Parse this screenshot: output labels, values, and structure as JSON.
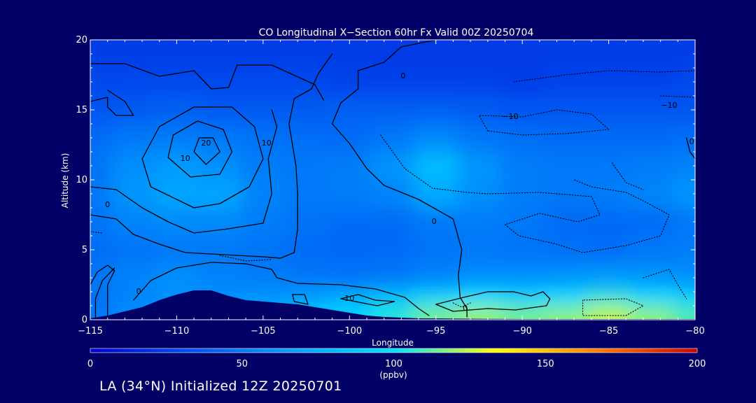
{
  "chart_data": {
    "type": "heatmap",
    "title": "CO Longitudinal X−Section 60hr  Fx Valid 00Z 20250704",
    "xlabel": "Longitude",
    "ylabel": "Altitude (km)",
    "xlim": [
      -115,
      -80
    ],
    "ylim": [
      0,
      20
    ],
    "x_ticks": [
      -115,
      -110,
      -105,
      -100,
      -95,
      -90,
      -85,
      -80
    ],
    "x_tick_labels": [
      "−115",
      "−110",
      "−105",
      "−100",
      "−95",
      "−90",
      "−85",
      "−80"
    ],
    "y_ticks": [
      0,
      5,
      10,
      15,
      20
    ],
    "y_tick_labels": [
      "0",
      "5",
      "10",
      "15",
      "20"
    ],
    "colorbar": {
      "min": 0,
      "max": 200,
      "ticks": [
        0,
        50,
        100,
        150,
        200
      ],
      "tick_labels": [
        "0",
        "50",
        "100",
        "150",
        "200"
      ],
      "unit": "(ppbv)",
      "colors": [
        "#0000cc",
        "#0050f0",
        "#00a0ff",
        "#00e0ff",
        "#ffff00",
        "#ff8000",
        "#cc0000"
      ]
    },
    "x": [
      -115,
      -112.5,
      -110,
      -107.5,
      -105,
      -102.5,
      -100,
      -97.5,
      -95,
      -92.5,
      -90,
      -87.5,
      -85,
      -82.5,
      -80
    ],
    "y": [
      0.5,
      1.5,
      3,
      5,
      7,
      9,
      11,
      13,
      15,
      17,
      19
    ],
    "z": [
      [
        50,
        60,
        62,
        65,
        72,
        85,
        95,
        105,
        115,
        120,
        115,
        118,
        125,
        118,
        110
      ],
      [
        45,
        55,
        60,
        60,
        62,
        65,
        75,
        85,
        95,
        100,
        95,
        98,
        105,
        98,
        92
      ],
      [
        50,
        55,
        60,
        55,
        52,
        50,
        48,
        50,
        55,
        60,
        60,
        62,
        64,
        62,
        60
      ],
      [
        45,
        48,
        50,
        50,
        48,
        45,
        44,
        45,
        48,
        50,
        48,
        47,
        46,
        50,
        52
      ],
      [
        48,
        55,
        58,
        58,
        52,
        48,
        45,
        45,
        50,
        52,
        50,
        45,
        44,
        45,
        50
      ],
      [
        50,
        62,
        70,
        70,
        55,
        50,
        52,
        55,
        72,
        60,
        52,
        50,
        52,
        56,
        62
      ],
      [
        48,
        60,
        65,
        60,
        52,
        50,
        52,
        62,
        82,
        62,
        52,
        50,
        50,
        52,
        55
      ],
      [
        45,
        50,
        52,
        50,
        48,
        46,
        45,
        50,
        58,
        50,
        46,
        45,
        45,
        45,
        46
      ],
      [
        35,
        38,
        40,
        38,
        38,
        38,
        40,
        40,
        40,
        38,
        36,
        36,
        36,
        36,
        36
      ],
      [
        30,
        30,
        30,
        30,
        30,
        30,
        28,
        28,
        28,
        28,
        26,
        28,
        28,
        28,
        30
      ],
      [
        25,
        25,
        26,
        26,
        25,
        25,
        25,
        24,
        24,
        24,
        24,
        25,
        26,
        26,
        26
      ]
    ],
    "terrain": [
      [
        -115,
        0.1
      ],
      [
        -114,
        0.3
      ],
      [
        -113,
        0.6
      ],
      [
        -112,
        0.9
      ],
      [
        -111,
        1.4
      ],
      [
        -110,
        1.8
      ],
      [
        -109,
        2.1
      ],
      [
        -108,
        2.1
      ],
      [
        -107,
        1.7
      ],
      [
        -106,
        1.4
      ],
      [
        -105,
        1.3
      ],
      [
        -104,
        1.2
      ],
      [
        -103,
        1.1
      ],
      [
        -102,
        0.9
      ],
      [
        -101,
        0.7
      ],
      [
        -100,
        0.5
      ],
      [
        -99,
        0.3
      ],
      [
        -98,
        0.2
      ],
      [
        -97,
        0.15
      ],
      [
        -96,
        0.1
      ],
      [
        -94,
        0.08
      ],
      [
        -92,
        0.06
      ],
      [
        -90,
        0.05
      ],
      [
        -88,
        0.05
      ],
      [
        -86,
        0.05
      ],
      [
        -84,
        0.05
      ],
      [
        -82,
        0.05
      ],
      [
        -80,
        0.05
      ]
    ],
    "contour_labels": [
      {
        "text": "0",
        "lon": -96.9,
        "lat_alt": 17.4
      },
      {
        "text": "10",
        "lon": -109.5,
        "lat_alt": 11.5
      },
      {
        "text": "20",
        "lon": -108.3,
        "lat_alt": 12.6
      },
      {
        "text": "10",
        "lon": -104.8,
        "lat_alt": 12.6
      },
      {
        "text": "0",
        "lon": -114.0,
        "lat_alt": 8.2
      },
      {
        "text": "0",
        "lon": -95.1,
        "lat_alt": 7.0
      },
      {
        "text": "0",
        "lon": -112.2,
        "lat_alt": 2.0
      },
      {
        "text": "10",
        "lon": -100.0,
        "lat_alt": 1.5
      },
      {
        "text": "0",
        "lon": -93.3,
        "lat_alt": 0.8
      },
      {
        "text": "−10",
        "lon": -90.7,
        "lat_alt": 14.5
      },
      {
        "text": "−10",
        "lon": -81.5,
        "lat_alt": 15.3
      },
      {
        "text": "0",
        "lon": -80.2,
        "lat_alt": 12.7
      }
    ],
    "contour_lines": [
      {
        "style": "solid",
        "points": [
          [
            -95,
            20
          ],
          [
            -97,
            19.5
          ],
          [
            -98,
            18.4
          ],
          [
            -99.5,
            17.8
          ],
          [
            -99.5,
            16.5
          ],
          [
            -100.5,
            15.5
          ],
          [
            -101,
            14.0
          ],
          [
            -100,
            12.6
          ],
          [
            -99,
            10.8
          ],
          [
            -98,
            9.6
          ],
          [
            -96,
            8.6
          ],
          [
            -94,
            7.2
          ],
          [
            -93.5,
            5.0
          ],
          [
            -93.7,
            3.2
          ],
          [
            -93.6,
            1.6
          ],
          [
            -93.2,
            0.8
          ],
          [
            -93.2,
            0.2
          ]
        ]
      },
      {
        "style": "solid",
        "points": [
          [
            -115,
            18.3
          ],
          [
            -113,
            18.3
          ],
          [
            -111,
            17.4
          ],
          [
            -109,
            17.8
          ],
          [
            -108,
            16.5
          ],
          [
            -107,
            16.6
          ],
          [
            -106.5,
            18.2
          ],
          [
            -104.5,
            18.2
          ],
          [
            -102,
            16.8
          ],
          [
            -101.5,
            15.7
          ]
        ]
      },
      {
        "style": "solid",
        "points": [
          [
            -115,
            15.6
          ],
          [
            -114,
            15.9
          ],
          [
            -114,
            15.2
          ],
          [
            -113.5,
            14.6
          ],
          [
            -112.5,
            14.6
          ],
          [
            -113,
            15.6
          ],
          [
            -114,
            16.4
          ]
        ]
      },
      {
        "style": "solid",
        "points": [
          [
            -109.2,
            10.2
          ],
          [
            -110.5,
            11.6
          ],
          [
            -110.2,
            13.2
          ],
          [
            -108.8,
            14.2
          ],
          [
            -107.3,
            13.6
          ],
          [
            -106.8,
            12.0
          ],
          [
            -107.5,
            10.4
          ],
          [
            -109.2,
            10.2
          ]
        ]
      },
      {
        "style": "solid",
        "points": [
          [
            -108.3,
            11.1
          ],
          [
            -109.0,
            12.0
          ],
          [
            -108.7,
            13.0
          ],
          [
            -107.9,
            13.0
          ],
          [
            -107.5,
            12.0
          ],
          [
            -108.3,
            11.1
          ]
        ]
      },
      {
        "style": "solid",
        "points": [
          [
            -109.0,
            8.0
          ],
          [
            -111.5,
            9.5
          ],
          [
            -112.0,
            11.5
          ],
          [
            -111.0,
            13.8
          ],
          [
            -109.0,
            15.2
          ],
          [
            -106.8,
            15.2
          ],
          [
            -105.5,
            13.8
          ],
          [
            -105.0,
            11.5
          ],
          [
            -105.8,
            9.5
          ],
          [
            -107.5,
            8.3
          ],
          [
            -109.0,
            8.0
          ]
        ]
      },
      {
        "style": "solid",
        "points": [
          [
            -115,
            9.5
          ],
          [
            -113.5,
            9.3
          ],
          [
            -112.0,
            8.0
          ],
          [
            -110.5,
            7.0
          ],
          [
            -109.0,
            6.2
          ],
          [
            -107.0,
            6.5
          ],
          [
            -105.0,
            6.9
          ],
          [
            -104.5,
            9.0
          ],
          [
            -104.7,
            11.5
          ],
          [
            -104.2,
            13.8
          ],
          [
            -104.5,
            15.0
          ]
        ]
      },
      {
        "style": "solid",
        "points": [
          [
            -115,
            7.5
          ],
          [
            -113.5,
            7.2
          ],
          [
            -112.5,
            6.1
          ],
          [
            -111,
            5.4
          ],
          [
            -109.5,
            4.8
          ],
          [
            -106.5,
            4.6
          ],
          [
            -105,
            4.5
          ],
          [
            -104,
            4.4
          ],
          [
            -103.2,
            4.8
          ],
          [
            -103.0,
            6.5
          ],
          [
            -103.0,
            9.0
          ],
          [
            -103.1,
            11.0
          ],
          [
            -103.5,
            14.0
          ],
          [
            -103.2,
            15.8
          ],
          [
            -102.2,
            16.5
          ],
          [
            -101.8,
            17.6
          ],
          [
            -101.0,
            19.0
          ]
        ]
      },
      {
        "style": "solid",
        "points": [
          [
            -115,
            2.5
          ],
          [
            -114.6,
            3.4
          ],
          [
            -114.0,
            3.9
          ],
          [
            -113.6,
            3.5
          ],
          [
            -114.0,
            2.5
          ],
          [
            -114.0,
            0.3
          ]
        ]
      },
      {
        "style": "solid",
        "points": [
          [
            -114.7,
            0.2
          ],
          [
            -114.7,
            1.5
          ],
          [
            -114.3,
            2.8
          ],
          [
            -113.6,
            3.7
          ]
        ]
      },
      {
        "style": "solid",
        "points": [
          [
            -112.5,
            1.4
          ],
          [
            -111.5,
            2.8
          ],
          [
            -110.0,
            3.7
          ],
          [
            -108.0,
            4.1
          ],
          [
            -106.0,
            4.0
          ],
          [
            -104.5,
            3.6
          ],
          [
            -104.2,
            3.0
          ],
          [
            -103.0,
            2.6
          ],
          [
            -100.5,
            2.5
          ],
          [
            -98.5,
            2.2
          ],
          [
            -96.8,
            1.6
          ],
          [
            -96.0,
            0.8
          ],
          [
            -95.4,
            0.3
          ]
        ]
      },
      {
        "style": "solid",
        "points": [
          [
            -103.2,
            1.3
          ],
          [
            -103.3,
            1.8
          ],
          [
            -102.6,
            1.8
          ],
          [
            -102.4,
            1.1
          ],
          [
            -103.2,
            1.3
          ]
        ]
      },
      {
        "style": "solid",
        "points": [
          [
            -100.5,
            1.5
          ],
          [
            -99.5,
            1.8
          ],
          [
            -98.5,
            1.4
          ],
          [
            -97.4,
            1.3
          ],
          [
            -98.4,
            1.0
          ],
          [
            -100.5,
            1.5
          ]
        ]
      },
      {
        "style": "solid",
        "points": [
          [
            -95.0,
            1.1
          ],
          [
            -93.4,
            1.6
          ],
          [
            -92.0,
            2.0
          ],
          [
            -90.5,
            2.0
          ],
          [
            -89.5,
            1.7
          ],
          [
            -88.8,
            2.0
          ],
          [
            -88.4,
            1.5
          ],
          [
            -88.6,
            1.0
          ],
          [
            -90.4,
            0.7
          ],
          [
            -92.0,
            0.8
          ],
          [
            -94.0,
            0.6
          ],
          [
            -95.0,
            1.1
          ]
        ]
      },
      {
        "style": "solid",
        "points": [
          [
            -80.5,
            13.0
          ],
          [
            -80.3,
            12.0
          ],
          [
            -80.0,
            11.5
          ]
        ]
      },
      {
        "style": "dotted",
        "points": [
          [
            -90.5,
            17.0
          ],
          [
            -87.5,
            17.5
          ],
          [
            -85.0,
            17.8
          ],
          [
            -82.0,
            17.7
          ],
          [
            -80.0,
            17.8
          ]
        ]
      },
      {
        "style": "dotted",
        "points": [
          [
            -82.0,
            16.0
          ],
          [
            -80.0,
            15.9
          ]
        ]
      },
      {
        "style": "dotted",
        "points": [
          [
            -92.0,
            13.5
          ],
          [
            -92.5,
            14.6
          ],
          [
            -90.0,
            14.5
          ],
          [
            -88.0,
            15.0
          ],
          [
            -86.0,
            14.7
          ],
          [
            -85.0,
            13.6
          ],
          [
            -87.5,
            13.3
          ],
          [
            -90.0,
            13.2
          ],
          [
            -92.0,
            13.5
          ]
        ]
      },
      {
        "style": "dotted",
        "points": [
          [
            -98.2,
            13.2
          ],
          [
            -96.8,
            10.8
          ],
          [
            -95.2,
            9.4
          ],
          [
            -93.2,
            9.1
          ],
          [
            -92.0,
            9.0
          ],
          [
            -89.0,
            9.1
          ],
          [
            -86.0,
            8.8
          ],
          [
            -85.5,
            7.5
          ],
          [
            -86.8,
            7.0
          ],
          [
            -89.0,
            7.6
          ],
          [
            -91.0,
            6.8
          ],
          [
            -90.2,
            6.0
          ],
          [
            -88.0,
            5.4
          ],
          [
            -86.5,
            4.8
          ],
          [
            -84.0,
            5.3
          ],
          [
            -82.0,
            6.0
          ],
          [
            -81.5,
            7.5
          ],
          [
            -83.0,
            8.5
          ],
          [
            -84.0,
            9.1
          ],
          [
            -86.0,
            9.5
          ],
          [
            -87.0,
            10.0
          ]
        ]
      },
      {
        "style": "dotted",
        "points": [
          [
            -84.8,
            11.2
          ],
          [
            -84.0,
            9.8
          ],
          [
            -83.0,
            9.3
          ]
        ]
      },
      {
        "style": "dotted",
        "points": [
          [
            -83.0,
            3.0
          ],
          [
            -81.5,
            3.6
          ],
          [
            -81.0,
            2.5
          ],
          [
            -80.5,
            1.5
          ]
        ]
      },
      {
        "style": "dotted",
        "points": [
          [
            -86.5,
            1.4
          ],
          [
            -86.5,
            0.3
          ],
          [
            -84.0,
            0.3
          ],
          [
            -83.0,
            1.0
          ],
          [
            -84.0,
            1.5
          ],
          [
            -86.5,
            1.4
          ]
        ]
      },
      {
        "style": "dotted",
        "points": [
          [
            -107.5,
            4.6
          ],
          [
            -106.0,
            4.2
          ],
          [
            -104.5,
            4.3
          ]
        ]
      },
      {
        "style": "dotted",
        "points": [
          [
            -115,
            6.3
          ],
          [
            -114.3,
            6.2
          ]
        ]
      },
      {
        "style": "dotted",
        "points": [
          [
            -94.0,
            1.2
          ],
          [
            -93.5,
            0.9
          ],
          [
            -93.0,
            1.2
          ]
        ]
      }
    ]
  },
  "footer": {
    "text": "LA (34°N) Initialized 12Z 20250701"
  }
}
